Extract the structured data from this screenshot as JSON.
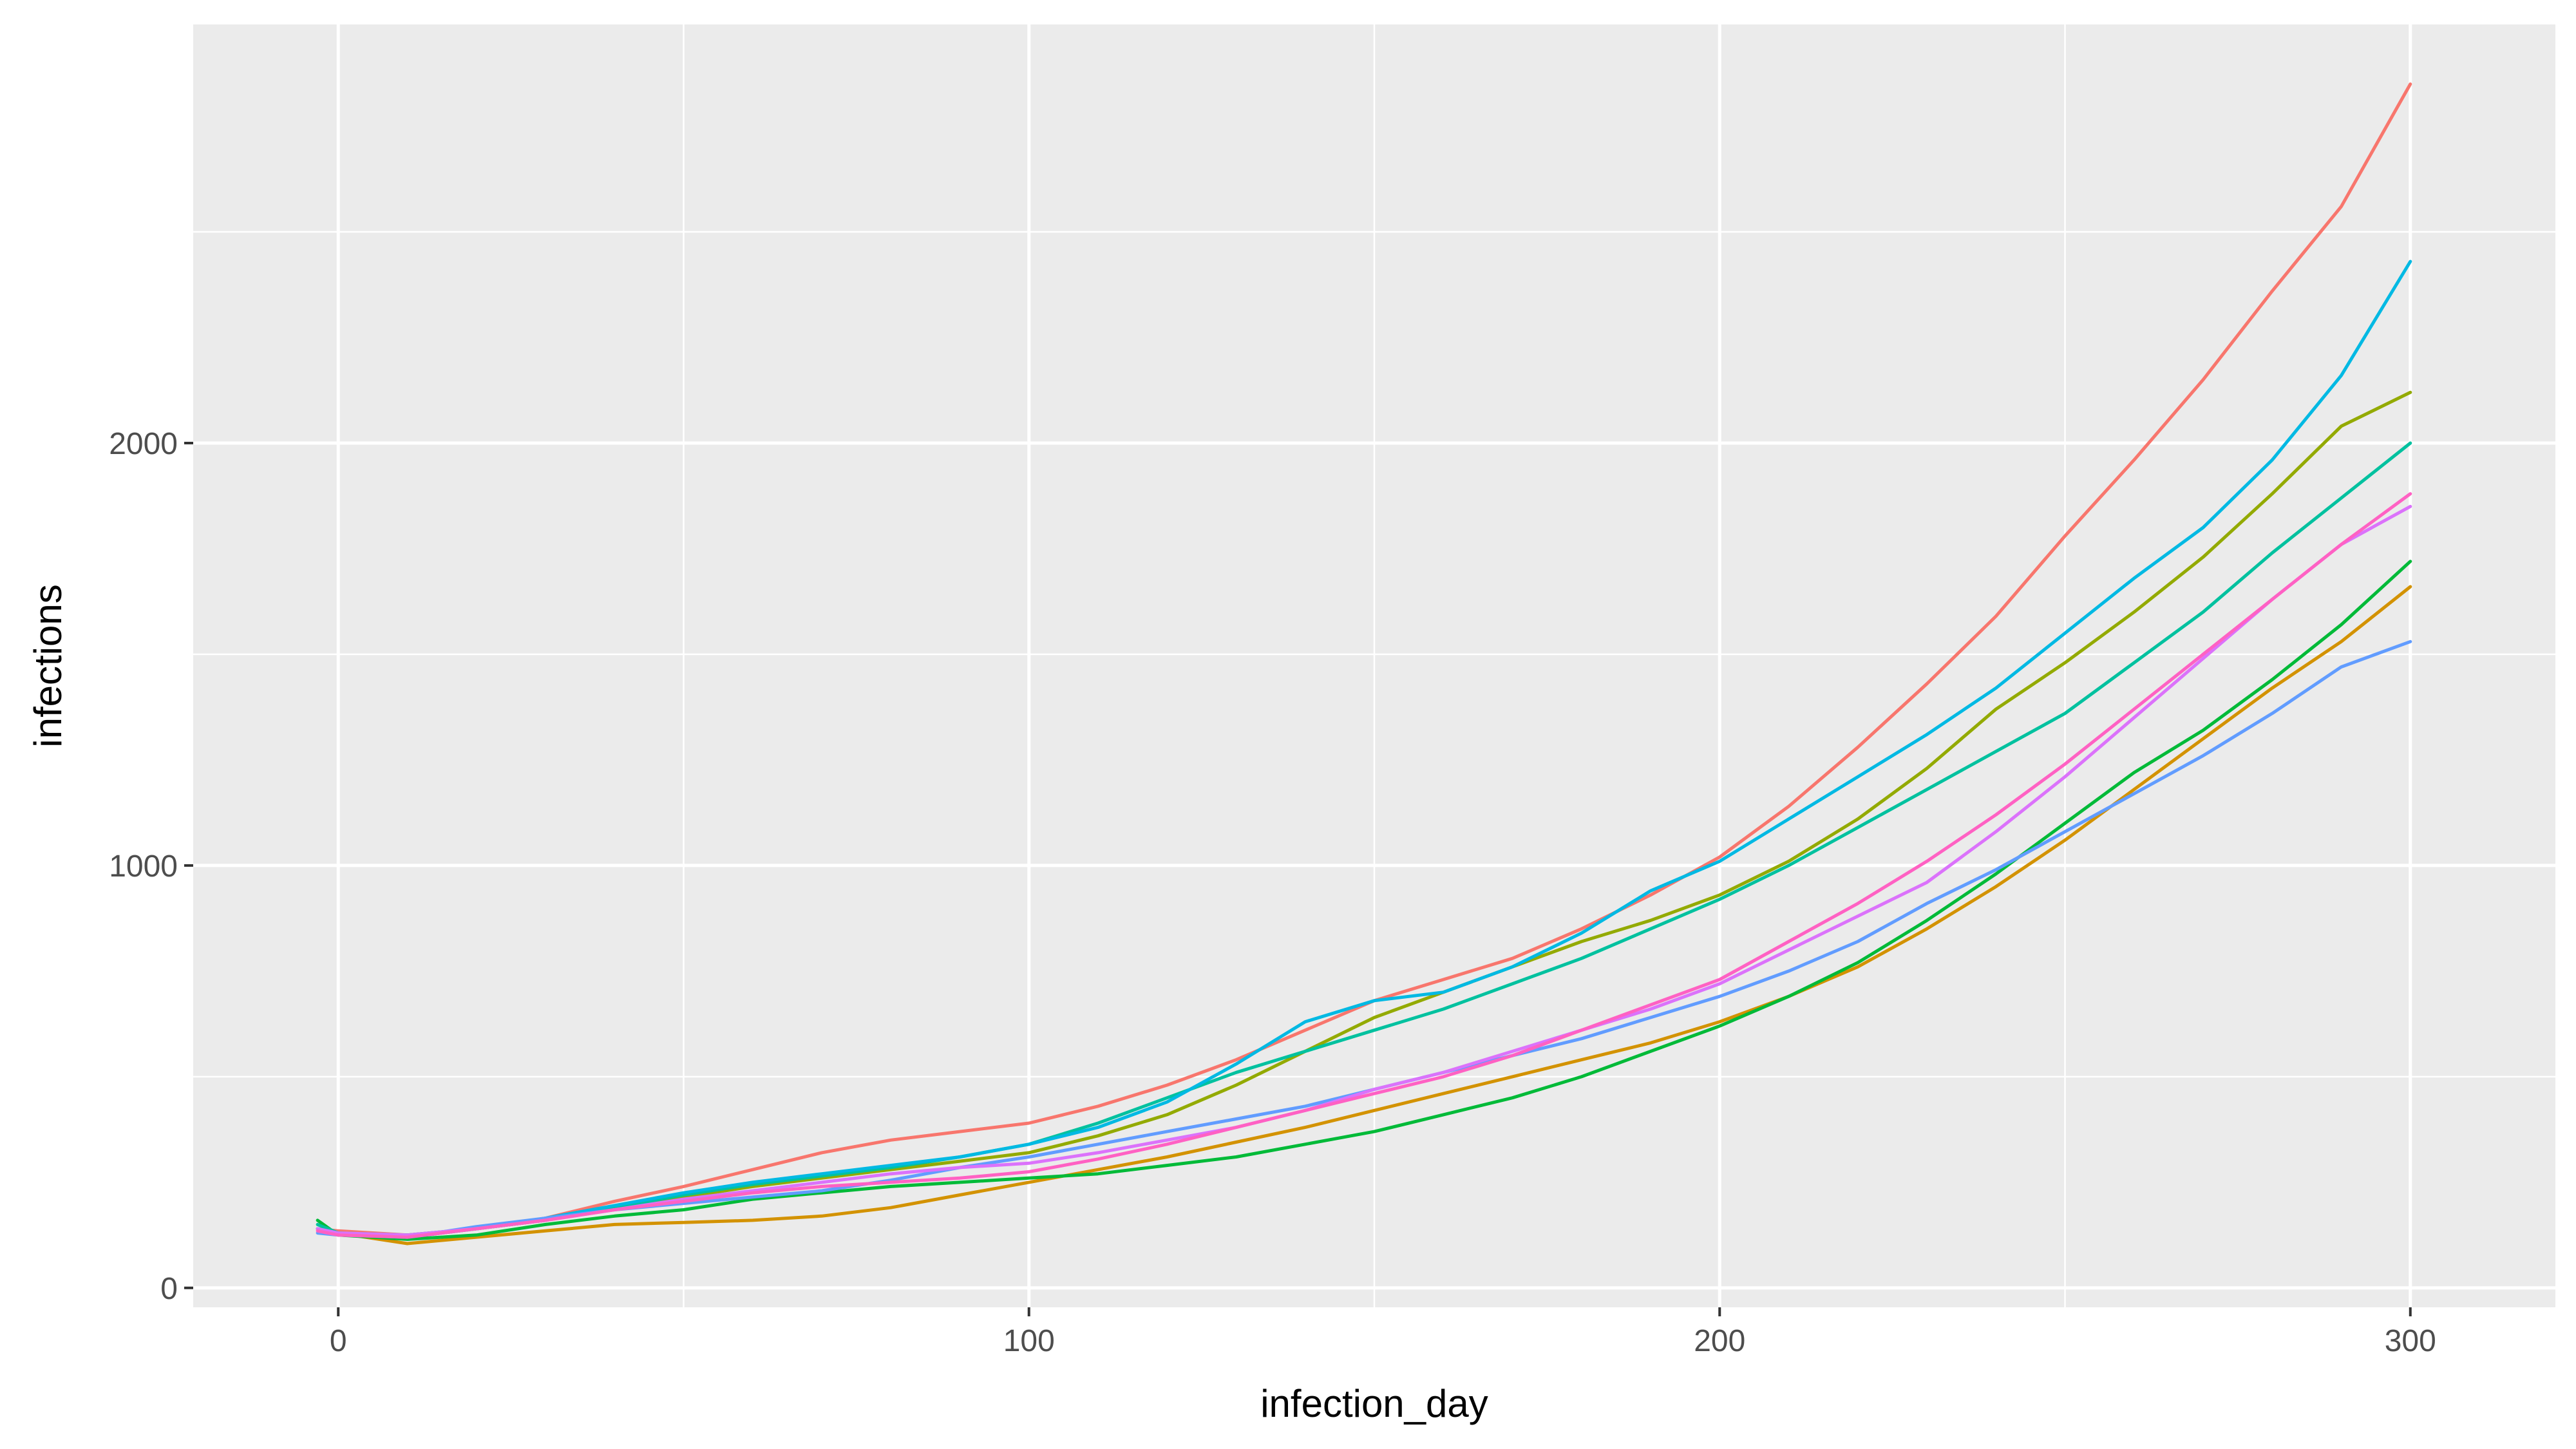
{
  "chart_data": {
    "type": "line",
    "title": "",
    "xlabel": "infection_day",
    "ylabel": "infections",
    "xlim": [
      -21,
      321
    ],
    "ylim": [
      -46,
      2991
    ],
    "x_ticks": [
      0,
      100,
      200,
      300
    ],
    "x_tick_labels": [
      "0",
      "100",
      "200",
      "300"
    ],
    "y_ticks": [
      0,
      1000,
      2000
    ],
    "y_tick_labels": [
      "0",
      "1000",
      "2000"
    ],
    "grid": true,
    "legend": "none",
    "colors": {
      "panel_background": "#ebebeb",
      "grid_line": "#ffffff",
      "tick_text": "#4d4d4d",
      "axis_title": "#000000"
    },
    "x": [
      -3,
      0,
      10,
      20,
      30,
      40,
      50,
      60,
      70,
      80,
      90,
      100,
      110,
      120,
      130,
      140,
      150,
      160,
      170,
      180,
      190,
      200,
      210,
      220,
      230,
      240,
      250,
      260,
      270,
      280,
      290,
      300
    ],
    "series": [
      {
        "color": "#f8766d",
        "values": [
          140,
          135,
          125,
          140,
          165,
          205,
          240,
          280,
          320,
          350,
          370,
          390,
          430,
          480,
          540,
          610,
          680,
          730,
          780,
          850,
          930,
          1020,
          1140,
          1280,
          1430,
          1590,
          1780,
          1960,
          2150,
          2360,
          2560,
          2850
        ]
      },
      {
        "color": "#d39200",
        "values": [
          140,
          130,
          105,
          120,
          135,
          150,
          155,
          160,
          170,
          190,
          220,
          250,
          280,
          310,
          345,
          380,
          420,
          460,
          500,
          540,
          580,
          630,
          690,
          760,
          850,
          950,
          1060,
          1180,
          1300,
          1420,
          1530,
          1660
        ]
      },
      {
        "color": "#93aa00",
        "values": [
          140,
          125,
          120,
          140,
          160,
          190,
          215,
          240,
          260,
          280,
          300,
          320,
          360,
          410,
          480,
          560,
          640,
          700,
          760,
          820,
          870,
          930,
          1010,
          1110,
          1230,
          1370,
          1480,
          1600,
          1730,
          1880,
          2040,
          2120
        ]
      },
      {
        "color": "#00ba38",
        "values": [
          160,
          125,
          115,
          125,
          150,
          170,
          185,
          210,
          225,
          240,
          250,
          260,
          270,
          290,
          310,
          340,
          370,
          410,
          450,
          500,
          560,
          620,
          690,
          770,
          870,
          980,
          1100,
          1220,
          1320,
          1440,
          1570,
          1720
        ]
      },
      {
        "color": "#00c19f",
        "values": [
          150,
          130,
          125,
          140,
          160,
          190,
          220,
          245,
          265,
          285,
          310,
          340,
          390,
          450,
          510,
          560,
          610,
          660,
          720,
          780,
          850,
          920,
          1000,
          1090,
          1180,
          1270,
          1360,
          1480,
          1600,
          1740,
          1870,
          2000
        ]
      },
      {
        "color": "#00b9e3",
        "values": [
          140,
          130,
          120,
          140,
          165,
          195,
          225,
          250,
          270,
          290,
          310,
          340,
          380,
          440,
          530,
          630,
          680,
          700,
          760,
          840,
          940,
          1010,
          1110,
          1210,
          1310,
          1420,
          1550,
          1680,
          1800,
          1960,
          2160,
          2430
        ]
      },
      {
        "color": "#619cff",
        "values": [
          130,
          125,
          120,
          145,
          165,
          185,
          200,
          215,
          230,
          255,
          285,
          310,
          340,
          370,
          400,
          430,
          470,
          510,
          550,
          590,
          640,
          690,
          750,
          820,
          910,
          990,
          1080,
          1170,
          1260,
          1360,
          1470,
          1530
        ]
      },
      {
        "color": "#db72fb",
        "values": [
          140,
          130,
          125,
          140,
          160,
          185,
          210,
          230,
          250,
          270,
          285,
          295,
          320,
          350,
          380,
          420,
          470,
          510,
          560,
          610,
          660,
          720,
          800,
          880,
          960,
          1080,
          1210,
          1350,
          1490,
          1630,
          1760,
          1850
        ]
      },
      {
        "color": "#ff61c3",
        "values": [
          135,
          125,
          120,
          140,
          160,
          185,
          205,
          225,
          240,
          250,
          260,
          275,
          305,
          340,
          380,
          420,
          460,
          500,
          550,
          610,
          670,
          730,
          820,
          910,
          1010,
          1120,
          1240,
          1370,
          1500,
          1630,
          1760,
          1880
        ]
      }
    ]
  }
}
